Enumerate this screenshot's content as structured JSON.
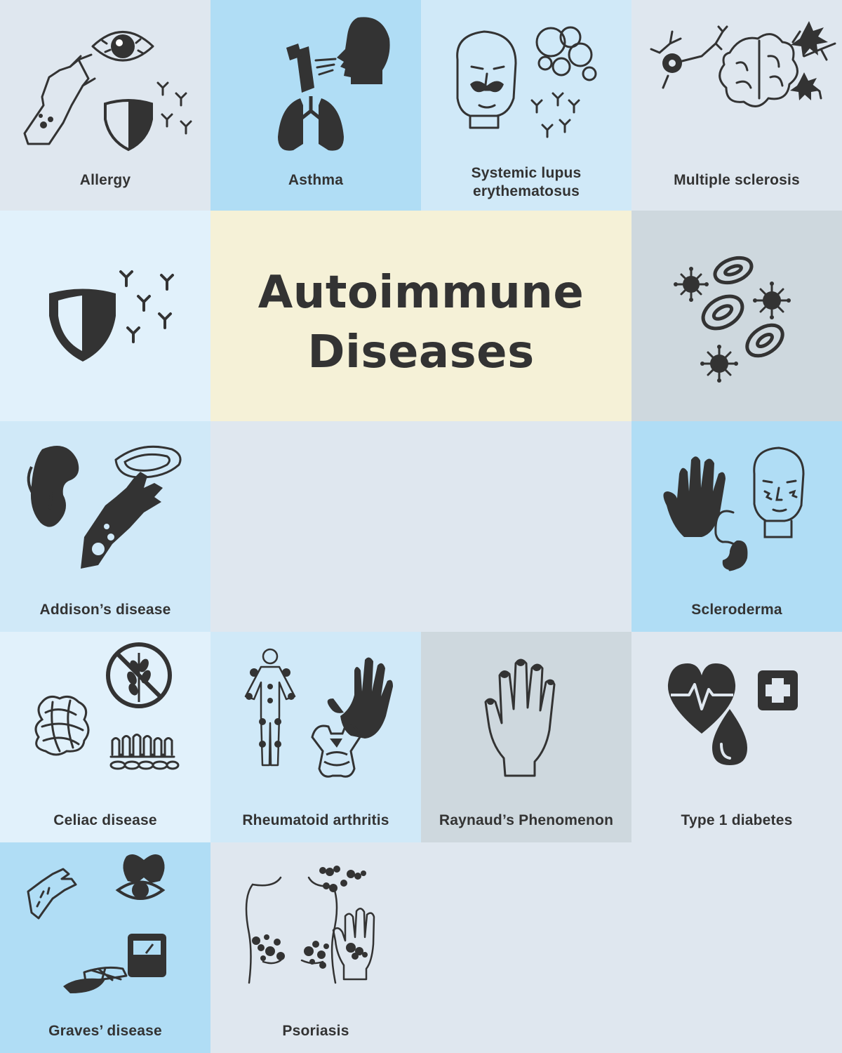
{
  "title": {
    "line1": "Autoimmune",
    "line2": "Diseases",
    "background": "#f5f1d7"
  },
  "colors": {
    "ink": "#333333",
    "paleGray": "#dfe7ef",
    "skyBlue": "#b0ddf5",
    "paleBlue": "#d0e9f8",
    "gray": "#ced8de",
    "pale": "#e1f1fb"
  },
  "tiles": [
    {
      "label": "Allergy",
      "icon": "allergy-icon",
      "bg": "#dfe7ef"
    },
    {
      "label": "Asthma",
      "icon": "asthma-icon",
      "bg": "#b0ddf5"
    },
    {
      "label1": "Systemic lupus",
      "label2": "erythematosus",
      "icon": "lupus-face-icon",
      "bg": "#d0e9f8"
    },
    {
      "label": "Multiple sclerosis",
      "icon": "brain-neurons-icon",
      "bg": "#dfe7ef"
    },
    {
      "label": "",
      "icon": "immune-shield-icon",
      "bg": "#e1f1fb"
    },
    {
      "label": "",
      "icon": "blood-cells-icon",
      "bg": "#ced8de"
    },
    {
      "label": "Addison’s disease",
      "icon": "kidney-adrenal-icon",
      "bg": "#d0e9f8"
    },
    {
      "label": "Scleroderma",
      "icon": "hand-face-icon",
      "bg": "#b0ddf5"
    },
    {
      "label": "Celiac disease",
      "icon": "no-wheat-icon",
      "bg": "#e1f1fb"
    },
    {
      "label": "Rheumatoid arthritis",
      "icon": "joints-icon",
      "bg": "#d0e9f8"
    },
    {
      "label": "Raynaud’s Phenomenon",
      "icon": "hand-outline-icon",
      "bg": "#ced8de"
    },
    {
      "label": "Type 1 diabetes",
      "icon": "heart-pulse-icon",
      "bg": "#dfe7ef"
    },
    {
      "label": "Graves’ disease",
      "icon": "thyroid-eye-icon",
      "bg": "#b0ddf5"
    },
    {
      "label": "Psoriasis",
      "icon": "skin-patches-icon",
      "bg": "#dfe7ef"
    }
  ]
}
